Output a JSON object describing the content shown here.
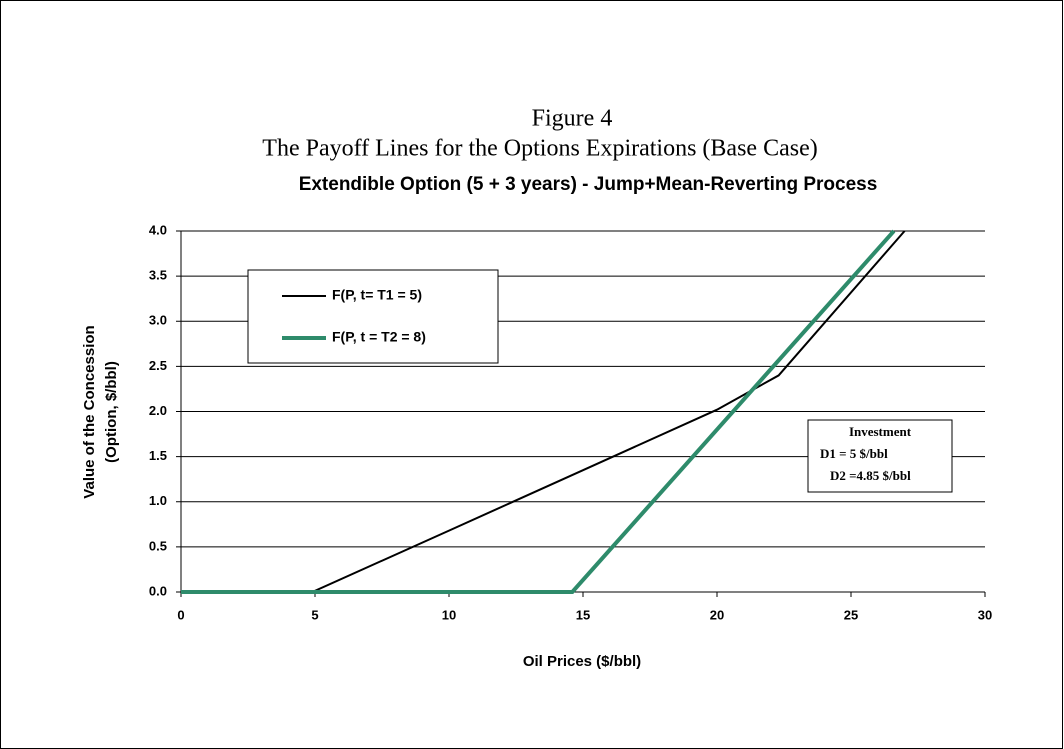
{
  "chart_data": {
    "type": "line",
    "pretitle": "Figure 4",
    "subtitle": "The Payoff Lines for the Options Expirations (Base Case)",
    "title": "Extendible Option (5 + 3 years) - Jump+Mean-Reverting Process",
    "xlabel": "Oil Prices ($/bbl)",
    "ylabel": [
      "Value of the Concession",
      "(Option, $/bbl)"
    ],
    "series": [
      {
        "name": "F(P, t= T1 = 5)",
        "color": "#000000",
        "width": 2,
        "x": [
          0,
          4.9,
          10,
          15,
          20,
          22.3,
          27
        ],
        "values": [
          0,
          0,
          0.68,
          1.35,
          2.02,
          2.4,
          4.0
        ]
      },
      {
        "name": "F(P, t = T2 = 8)",
        "color": "#2e8b6b",
        "width": 4,
        "x": [
          0,
          14.6,
          26.6
        ],
        "values": [
          0,
          0,
          4.0
        ]
      }
    ],
    "xlim": [
      0,
      30
    ],
    "xticks": [
      0,
      5,
      10,
      15,
      20,
      25,
      30
    ],
    "ylim": [
      0,
      4
    ],
    "yticks": [
      {
        "value": 0,
        "label": "0.0"
      },
      0.5,
      {
        "value": 1,
        "label": "1.0"
      },
      1.5,
      {
        "value": 2,
        "label": "2.0"
      },
      2.5,
      {
        "value": 3,
        "label": "3.0"
      },
      3.5,
      {
        "value": 4,
        "label": "4.0"
      }
    ],
    "grid": true,
    "legend": "upper left",
    "annotations": [
      "Investment",
      "D1 = 5 $/bbl",
      "D2 =4.85 $/bbl"
    ]
  }
}
